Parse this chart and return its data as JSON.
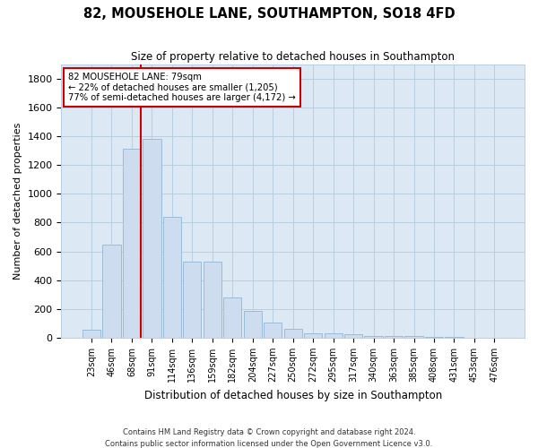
{
  "title": "82, MOUSEHOLE LANE, SOUTHAMPTON, SO18 4FD",
  "subtitle": "Size of property relative to detached houses in Southampton",
  "xlabel": "Distribution of detached houses by size in Southampton",
  "ylabel": "Number of detached properties",
  "footer_line1": "Contains HM Land Registry data © Crown copyright and database right 2024.",
  "footer_line2": "Contains public sector information licensed under the Open Government Licence v3.0.",
  "bar_color": "#cddcee",
  "bar_edge_color": "#9bbbd8",
  "grid_color": "#b8cfe0",
  "background_color": "#dce9f5",
  "annotation_box_color": "#cc0000",
  "property_line_color": "#cc0000",
  "categories": [
    "23sqm",
    "46sqm",
    "68sqm",
    "91sqm",
    "114sqm",
    "136sqm",
    "159sqm",
    "182sqm",
    "204sqm",
    "227sqm",
    "250sqm",
    "272sqm",
    "295sqm",
    "317sqm",
    "340sqm",
    "363sqm",
    "385sqm",
    "408sqm",
    "431sqm",
    "453sqm",
    "476sqm"
  ],
  "values": [
    55,
    645,
    1310,
    1380,
    840,
    530,
    530,
    280,
    185,
    105,
    65,
    30,
    30,
    25,
    15,
    10,
    10,
    5,
    3,
    2,
    2
  ],
  "ylim": [
    0,
    1900
  ],
  "yticks": [
    0,
    200,
    400,
    600,
    800,
    1000,
    1200,
    1400,
    1600,
    1800
  ],
  "property_bin_index": 2,
  "annotation_text_line1": "82 MOUSEHOLE LANE: 79sqm",
  "annotation_text_line2": "← 22% of detached houses are smaller (1,205)",
  "annotation_text_line3": "77% of semi-detached houses are larger (4,172) →"
}
